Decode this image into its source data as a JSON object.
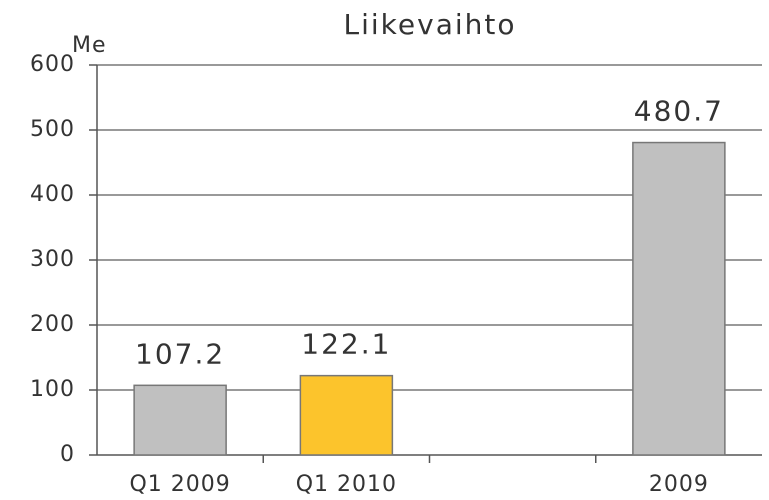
{
  "chart_data": {
    "type": "bar",
    "title": "Liikevaihto",
    "y_label": "Me",
    "categories": [
      "Q1 2009",
      "Q1 2010",
      null,
      "2009"
    ],
    "values": [
      107.2,
      122.1,
      null,
      480.7
    ],
    "colors": [
      "#c0c0c0",
      "#fcc42c",
      "#c0c0c0",
      "#c0c0c0"
    ],
    "ylim": [
      0,
      600
    ],
    "yticks": [
      0,
      100,
      200,
      300,
      400,
      500,
      600
    ],
    "grid": true
  }
}
